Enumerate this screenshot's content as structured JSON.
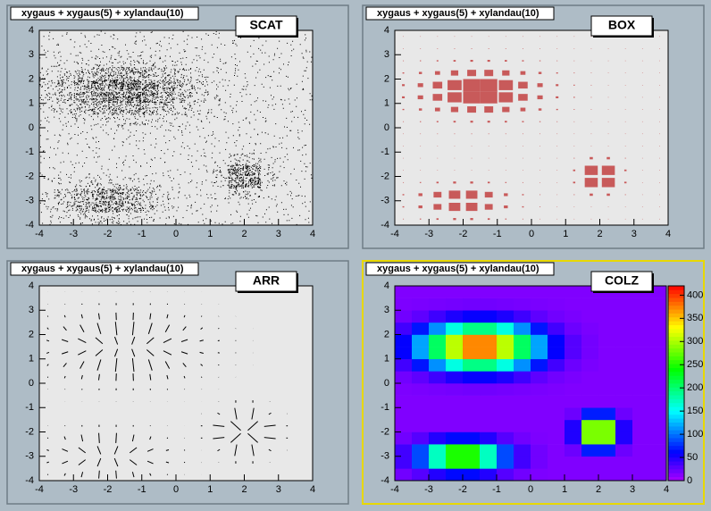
{
  "chart_data": [
    {
      "type": "scat",
      "title": "xygaus + xygaus(5) + xylandau(10)",
      "label": "SCAT",
      "xlim": [
        -4,
        4
      ],
      "ylim": [
        -4,
        4
      ],
      "xticks": [
        -4,
        -3,
        -2,
        -1,
        0,
        1,
        2,
        3,
        4
      ],
      "yticks": [
        -4,
        -3,
        -2,
        -1,
        0,
        1,
        2,
        3,
        4
      ],
      "color": "#000000",
      "z": [
        [
          20,
          30,
          48,
          63,
          63,
          48,
          30,
          20,
          16,
          15,
          15,
          15,
          15,
          15,
          15,
          15
        ],
        [
          37,
          86,
          172,
          249,
          249,
          172,
          86,
          37,
          20,
          15,
          15,
          15,
          15,
          15,
          15,
          15
        ],
        [
          37,
          86,
          172,
          249,
          249,
          172,
          86,
          37,
          20,
          15,
          22,
          70,
          70,
          22,
          15,
          15
        ],
        [
          20,
          30,
          48,
          63,
          63,
          48,
          30,
          20,
          16,
          15,
          49,
          283,
          283,
          49,
          15,
          15
        ],
        [
          15,
          15,
          15,
          15,
          15,
          15,
          15,
          15,
          15,
          15,
          49,
          283,
          283,
          49,
          15,
          15
        ],
        [
          15,
          15,
          15,
          15,
          15,
          15,
          15,
          15,
          15,
          15,
          22,
          70,
          70,
          22,
          15,
          15
        ],
        [
          15,
          15,
          15,
          15,
          15,
          15,
          15,
          15,
          15,
          15,
          15,
          15,
          15,
          15,
          15,
          15
        ],
        [
          16,
          17,
          18,
          19,
          20,
          20,
          19,
          18,
          17,
          16,
          15,
          15,
          15,
          15,
          15,
          15
        ],
        [
          20,
          27,
          38,
          50,
          58,
          58,
          50,
          38,
          27,
          20,
          17,
          15,
          15,
          15,
          15,
          15
        ],
        [
          37,
          67,
          111,
          160,
          193,
          193,
          160,
          111,
          67,
          37,
          22,
          17,
          15,
          15,
          15,
          15
        ],
        [
          59,
          118,
          206,
          306,
          372,
          372,
          306,
          206,
          118,
          59,
          30,
          19,
          15,
          15,
          15,
          15
        ],
        [
          59,
          118,
          206,
          306,
          372,
          372,
          306,
          206,
          118,
          59,
          30,
          19,
          15,
          15,
          15,
          15
        ],
        [
          37,
          67,
          111,
          160,
          193,
          193,
          160,
          111,
          67,
          37,
          22,
          17,
          15,
          15,
          15,
          15
        ],
        [
          20,
          27,
          38,
          50,
          58,
          58,
          50,
          38,
          27,
          20,
          17,
          15,
          15,
          15,
          15,
          15
        ],
        [
          16,
          17,
          18,
          19,
          20,
          20,
          19,
          18,
          17,
          16,
          15,
          15,
          15,
          15,
          15,
          15
        ],
        [
          15,
          15,
          15,
          15,
          15,
          15,
          15,
          15,
          15,
          15,
          15,
          15,
          15,
          15,
          15,
          15
        ]
      ]
    },
    {
      "type": "box",
      "title": "xygaus + xygaus(5) + xylandau(10)",
      "label": "BOX",
      "xlim": [
        -4,
        4
      ],
      "ylim": [
        -4,
        4
      ],
      "xticks": [
        -4,
        -3,
        -2,
        -1,
        0,
        1,
        2,
        3,
        4
      ],
      "yticks": [
        -4,
        -3,
        -2,
        -1,
        0,
        1,
        2,
        3,
        4
      ],
      "color": "#c85a5a",
      "z": [
        [
          20,
          30,
          48,
          63,
          63,
          48,
          30,
          20,
          16,
          15,
          15,
          15,
          15,
          15,
          15,
          15
        ],
        [
          37,
          86,
          172,
          249,
          249,
          172,
          86,
          37,
          20,
          15,
          15,
          15,
          15,
          15,
          15,
          15
        ],
        [
          37,
          86,
          172,
          249,
          249,
          172,
          86,
          37,
          20,
          15,
          22,
          70,
          70,
          22,
          15,
          15
        ],
        [
          20,
          30,
          48,
          63,
          63,
          48,
          30,
          20,
          16,
          15,
          49,
          283,
          283,
          49,
          15,
          15
        ],
        [
          15,
          15,
          15,
          15,
          15,
          15,
          15,
          15,
          15,
          15,
          49,
          283,
          283,
          49,
          15,
          15
        ],
        [
          15,
          15,
          15,
          15,
          15,
          15,
          15,
          15,
          15,
          15,
          22,
          70,
          70,
          22,
          15,
          15
        ],
        [
          15,
          15,
          15,
          15,
          15,
          15,
          15,
          15,
          15,
          15,
          15,
          15,
          15,
          15,
          15,
          15
        ],
        [
          16,
          17,
          18,
          19,
          20,
          20,
          19,
          18,
          17,
          16,
          15,
          15,
          15,
          15,
          15,
          15
        ],
        [
          20,
          27,
          38,
          50,
          58,
          58,
          50,
          38,
          27,
          20,
          17,
          15,
          15,
          15,
          15,
          15
        ],
        [
          37,
          67,
          111,
          160,
          193,
          193,
          160,
          111,
          67,
          37,
          22,
          17,
          15,
          15,
          15,
          15
        ],
        [
          59,
          118,
          206,
          306,
          372,
          372,
          306,
          206,
          118,
          59,
          30,
          19,
          15,
          15,
          15,
          15
        ],
        [
          59,
          118,
          206,
          306,
          372,
          372,
          306,
          206,
          118,
          59,
          30,
          19,
          15,
          15,
          15,
          15
        ],
        [
          37,
          67,
          111,
          160,
          193,
          193,
          160,
          111,
          67,
          37,
          22,
          17,
          15,
          15,
          15,
          15
        ],
        [
          20,
          27,
          38,
          50,
          58,
          58,
          50,
          38,
          27,
          20,
          17,
          15,
          15,
          15,
          15,
          15
        ],
        [
          16,
          17,
          18,
          19,
          20,
          20,
          19,
          18,
          17,
          16,
          15,
          15,
          15,
          15,
          15,
          15
        ],
        [
          15,
          15,
          15,
          15,
          15,
          15,
          15,
          15,
          15,
          15,
          15,
          15,
          15,
          15,
          15,
          15
        ]
      ]
    },
    {
      "type": "arr",
      "title": "xygaus + xygaus(5) + xylandau(10)",
      "label": "ARR",
      "xlim": [
        -4,
        4
      ],
      "ylim": [
        -4,
        4
      ],
      "xticks": [
        -4,
        -3,
        -2,
        -1,
        0,
        1,
        2,
        3,
        4
      ],
      "yticks": [
        -4,
        -3,
        -2,
        -1,
        0,
        1,
        2,
        3,
        4
      ],
      "color": "#000000",
      "z": [
        [
          20,
          30,
          48,
          63,
          63,
          48,
          30,
          20,
          16,
          15,
          15,
          15,
          15,
          15,
          15,
          15
        ],
        [
          37,
          86,
          172,
          249,
          249,
          172,
          86,
          37,
          20,
          15,
          15,
          15,
          15,
          15,
          15,
          15
        ],
        [
          37,
          86,
          172,
          249,
          249,
          172,
          86,
          37,
          20,
          15,
          22,
          70,
          70,
          22,
          15,
          15
        ],
        [
          20,
          30,
          48,
          63,
          63,
          48,
          30,
          20,
          16,
          15,
          49,
          283,
          283,
          49,
          15,
          15
        ],
        [
          15,
          15,
          15,
          15,
          15,
          15,
          15,
          15,
          15,
          15,
          49,
          283,
          283,
          49,
          15,
          15
        ],
        [
          15,
          15,
          15,
          15,
          15,
          15,
          15,
          15,
          15,
          15,
          22,
          70,
          70,
          22,
          15,
          15
        ],
        [
          15,
          15,
          15,
          15,
          15,
          15,
          15,
          15,
          15,
          15,
          15,
          15,
          15,
          15,
          15,
          15
        ],
        [
          16,
          17,
          18,
          19,
          20,
          20,
          19,
          18,
          17,
          16,
          15,
          15,
          15,
          15,
          15,
          15
        ],
        [
          20,
          27,
          38,
          50,
          58,
          58,
          50,
          38,
          27,
          20,
          17,
          15,
          15,
          15,
          15,
          15
        ],
        [
          37,
          67,
          111,
          160,
          193,
          193,
          160,
          111,
          67,
          37,
          22,
          17,
          15,
          15,
          15,
          15
        ],
        [
          59,
          118,
          206,
          306,
          372,
          372,
          306,
          206,
          118,
          59,
          30,
          19,
          15,
          15,
          15,
          15
        ],
        [
          59,
          118,
          206,
          306,
          372,
          372,
          306,
          206,
          118,
          59,
          30,
          19,
          15,
          15,
          15,
          15
        ],
        [
          37,
          67,
          111,
          160,
          193,
          193,
          160,
          111,
          67,
          37,
          22,
          17,
          15,
          15,
          15,
          15
        ],
        [
          20,
          27,
          38,
          50,
          58,
          58,
          50,
          38,
          27,
          20,
          17,
          15,
          15,
          15,
          15,
          15
        ],
        [
          16,
          17,
          18,
          19,
          20,
          20,
          19,
          18,
          17,
          16,
          15,
          15,
          15,
          15,
          15,
          15
        ],
        [
          15,
          15,
          15,
          15,
          15,
          15,
          15,
          15,
          15,
          15,
          15,
          15,
          15,
          15,
          15,
          15
        ]
      ]
    },
    {
      "type": "colz",
      "title": "xygaus + xygaus(5) + xylandau(10)",
      "label": "COLZ",
      "xlim": [
        -4,
        4
      ],
      "ylim": [
        -4,
        4
      ],
      "xticks": [
        -4,
        -3,
        -2,
        -1,
        0,
        1,
        2,
        3,
        4
      ],
      "yticks": [
        -4,
        -3,
        -2,
        -1,
        0,
        1,
        2,
        3,
        4
      ],
      "zlim": [
        0,
        420
      ],
      "zticks": [
        0,
        50,
        100,
        150,
        200,
        250,
        300,
        350,
        400
      ],
      "z": [
        [
          20,
          30,
          48,
          63,
          63,
          48,
          30,
          20,
          16,
          15,
          15,
          15,
          15,
          15,
          15,
          15
        ],
        [
          37,
          86,
          172,
          249,
          249,
          172,
          86,
          37,
          20,
          15,
          15,
          15,
          15,
          15,
          15,
          15
        ],
        [
          37,
          86,
          172,
          249,
          249,
          172,
          86,
          37,
          20,
          15,
          22,
          70,
          70,
          22,
          15,
          15
        ],
        [
          20,
          30,
          48,
          63,
          63,
          48,
          30,
          20,
          16,
          15,
          49,
          283,
          283,
          49,
          15,
          15
        ],
        [
          15,
          15,
          15,
          15,
          15,
          15,
          15,
          15,
          15,
          15,
          49,
          283,
          283,
          49,
          15,
          15
        ],
        [
          15,
          15,
          15,
          15,
          15,
          15,
          15,
          15,
          15,
          15,
          22,
          70,
          70,
          22,
          15,
          15
        ],
        [
          15,
          15,
          15,
          15,
          15,
          15,
          15,
          15,
          15,
          15,
          15,
          15,
          15,
          15,
          15,
          15
        ],
        [
          16,
          17,
          18,
          19,
          20,
          20,
          19,
          18,
          17,
          16,
          15,
          15,
          15,
          15,
          15,
          15
        ],
        [
          20,
          27,
          38,
          50,
          58,
          58,
          50,
          38,
          27,
          20,
          17,
          15,
          15,
          15,
          15,
          15
        ],
        [
          37,
          67,
          111,
          160,
          193,
          193,
          160,
          111,
          67,
          37,
          22,
          17,
          15,
          15,
          15,
          15
        ],
        [
          59,
          118,
          206,
          306,
          372,
          372,
          306,
          206,
          118,
          59,
          30,
          19,
          15,
          15,
          15,
          15
        ],
        [
          59,
          118,
          206,
          306,
          372,
          372,
          306,
          206,
          118,
          59,
          30,
          19,
          15,
          15,
          15,
          15
        ],
        [
          37,
          67,
          111,
          160,
          193,
          193,
          160,
          111,
          67,
          37,
          22,
          17,
          15,
          15,
          15,
          15
        ],
        [
          20,
          27,
          38,
          50,
          58,
          58,
          50,
          38,
          27,
          20,
          17,
          15,
          15,
          15,
          15,
          15
        ],
        [
          16,
          17,
          18,
          19,
          20,
          20,
          19,
          18,
          17,
          16,
          15,
          15,
          15,
          15,
          15,
          15
        ],
        [
          15,
          15,
          15,
          15,
          15,
          15,
          15,
          15,
          15,
          15,
          15,
          15,
          15,
          15,
          15,
          15
        ]
      ]
    }
  ]
}
